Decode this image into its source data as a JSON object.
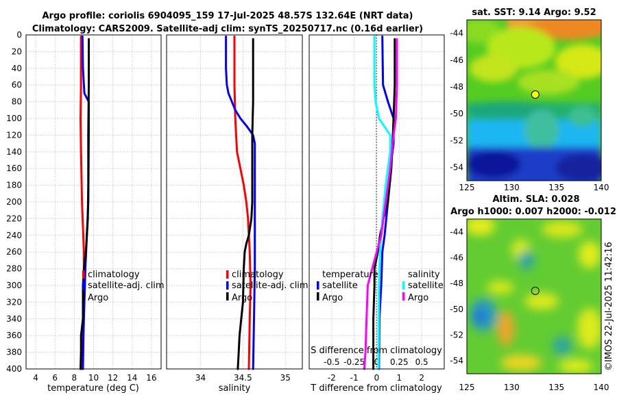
{
  "header": {
    "line1": "Argo profile: coriolis 6904095_159 17-Jul-2025 48.57S 132.64E (NRT data)",
    "line2": "Climatology: CARS2009. Satellite-adj clim: synTS_20250717.nc (0.16d earlier)"
  },
  "stamp": "©IMOS 22-Jul-2025 11:42:16",
  "colors": {
    "climatology": "#ff0000",
    "satellite": "#0000ff",
    "argo": "#000000",
    "sat_salinity": "#00ffff",
    "argo_salinity": "#ff00ff"
  },
  "chart_data": [
    {
      "type": "line",
      "title": "",
      "xlabel": "temperature (deg C)",
      "ylabel": "",
      "xlim": [
        3,
        17
      ],
      "ylim": [
        0,
        400
      ],
      "y_reversed": true,
      "xticks": [
        4,
        6,
        8,
        10,
        12,
        14,
        16
      ],
      "yticks": [
        0,
        20,
        40,
        60,
        80,
        100,
        120,
        140,
        160,
        180,
        200,
        220,
        240,
        260,
        280,
        300,
        320,
        340,
        360,
        380,
        400
      ],
      "legend": [
        "climatology",
        "satellite-adj. clim",
        "Argo"
      ],
      "series": [
        {
          "name": "climatology",
          "color": "#ff0000",
          "points": [
            [
              8.7,
              2
            ],
            [
              8.7,
              60
            ],
            [
              8.65,
              100
            ],
            [
              8.7,
              140
            ],
            [
              8.8,
              200
            ],
            [
              9.0,
              260
            ],
            [
              9.0,
              300
            ],
            [
              8.95,
              340
            ],
            [
              8.85,
              380
            ],
            [
              8.8,
              400
            ]
          ]
        },
        {
          "name": "satellite-adj. clim",
          "color": "#0000ff",
          "points": [
            [
              8.85,
              2
            ],
            [
              8.9,
              40
            ],
            [
              9.0,
              60
            ],
            [
              9.05,
              70
            ],
            [
              9.5,
              80
            ],
            [
              9.5,
              120
            ],
            [
              9.45,
              200
            ],
            [
              9.3,
              240
            ],
            [
              9.15,
              280
            ],
            [
              9.05,
              320
            ],
            [
              8.95,
              360
            ],
            [
              8.9,
              400
            ]
          ]
        },
        {
          "name": "Argo",
          "color": "#000000",
          "points": [
            [
              9.5,
              5
            ],
            [
              9.5,
              60
            ],
            [
              9.45,
              120
            ],
            [
              9.45,
              180
            ],
            [
              9.4,
              220
            ],
            [
              9.3,
              240
            ],
            [
              9.2,
              260
            ],
            [
              9.0,
              280
            ],
            [
              8.9,
              300
            ],
            [
              8.9,
              340
            ],
            [
              8.7,
              360
            ],
            [
              8.7,
              380
            ],
            [
              8.65,
              400
            ]
          ]
        }
      ]
    },
    {
      "type": "line",
      "title": "",
      "xlabel": "salinity",
      "ylabel": "",
      "xlim": [
        33.6,
        35.2
      ],
      "ylim": [
        0,
        400
      ],
      "y_reversed": true,
      "xticks": [
        34,
        34.5,
        35
      ],
      "xticklabels": [
        "34",
        "34.5",
        "35"
      ],
      "legend": [
        "climatology",
        "satellite-adj. clim",
        "Argo"
      ],
      "series": [
        {
          "name": "climatology",
          "color": "#ff0000",
          "points": [
            [
              34.4,
              2
            ],
            [
              34.4,
              60
            ],
            [
              34.41,
              100
            ],
            [
              34.43,
              140
            ],
            [
              34.47,
              160
            ],
            [
              34.51,
              180
            ],
            [
              34.54,
              200
            ],
            [
              34.56,
              220
            ],
            [
              34.58,
              260
            ],
            [
              34.59,
              300
            ],
            [
              34.58,
              340
            ],
            [
              34.57,
              400
            ]
          ]
        },
        {
          "name": "satellite-adj. clim",
          "color": "#0000ff",
          "points": [
            [
              34.3,
              2
            ],
            [
              34.3,
              40
            ],
            [
              34.31,
              60
            ],
            [
              34.33,
              70
            ],
            [
              34.41,
              90
            ],
            [
              34.47,
              100
            ],
            [
              34.55,
              110
            ],
            [
              34.62,
              120
            ],
            [
              34.64,
              130
            ],
            [
              34.64,
              200
            ],
            [
              34.64,
              280
            ],
            [
              34.63,
              340
            ],
            [
              34.62,
              400
            ]
          ]
        },
        {
          "name": "Argo",
          "color": "#000000",
          "points": [
            [
              34.62,
              5
            ],
            [
              34.62,
              80
            ],
            [
              34.61,
              120
            ],
            [
              34.61,
              160
            ],
            [
              34.61,
              200
            ],
            [
              34.6,
              220
            ],
            [
              34.57,
              240
            ],
            [
              34.54,
              250
            ],
            [
              34.52,
              260
            ],
            [
              34.51,
              280
            ],
            [
              34.5,
              320
            ],
            [
              34.48,
              340
            ],
            [
              34.46,
              360
            ],
            [
              34.45,
              380
            ],
            [
              34.44,
              400
            ]
          ]
        }
      ]
    },
    {
      "type": "line",
      "title": "",
      "xlabel": "T difference from climatology",
      "top_label": "S difference from climatology",
      "ylabel": "",
      "xlim": [
        -3,
        3
      ],
      "ylim": [
        0,
        400
      ],
      "y_reversed": true,
      "xticks": [
        -2,
        -1,
        0,
        1,
        2
      ],
      "xticklabels": [
        "-2",
        "-1",
        "0",
        "1",
        "2"
      ],
      "top_ticklabels": [
        "-0.5",
        "-0.25",
        "0",
        "0.25",
        "0.5"
      ],
      "legend_left_header": "temperature",
      "legend_right_header": "salinity",
      "legend_left": [
        "satellite",
        "Argo"
      ],
      "legend_right": [
        "satellite",
        "Argo"
      ],
      "series": [
        {
          "name": "temperature satellite",
          "color": "#0000ff",
          "points": [
            [
              0.25,
              2
            ],
            [
              0.28,
              60
            ],
            [
              0.5,
              80
            ],
            [
              0.75,
              100
            ],
            [
              0.75,
              130
            ],
            [
              0.6,
              160
            ],
            [
              0.5,
              200
            ],
            [
              0.35,
              240
            ],
            [
              0.25,
              260
            ],
            [
              0.2,
              300
            ],
            [
              0.12,
              340
            ],
            [
              0.1,
              400
            ]
          ]
        },
        {
          "name": "temperature Argo",
          "color": "#000000",
          "points": [
            [
              0.8,
              5
            ],
            [
              0.8,
              60
            ],
            [
              0.75,
              100
            ],
            [
              0.7,
              130
            ],
            [
              0.65,
              160
            ],
            [
              0.5,
              200
            ],
            [
              0.3,
              220
            ],
            [
              0.15,
              240
            ],
            [
              0.05,
              260
            ],
            [
              -0.1,
              280
            ],
            [
              -0.1,
              300
            ],
            [
              -0.15,
              340
            ],
            [
              -0.15,
              400
            ]
          ]
        },
        {
          "name": "salinity satellite",
          "color": "#00ffff",
          "points": [
            [
              -0.1,
              2
            ],
            [
              -0.1,
              60
            ],
            [
              -0.05,
              80
            ],
            [
              0.1,
              100
            ],
            [
              0.35,
              110
            ],
            [
              0.6,
              120
            ],
            [
              0.6,
              140
            ],
            [
              0.4,
              180
            ],
            [
              0.25,
              220
            ],
            [
              0.15,
              260
            ],
            [
              0.1,
              300
            ],
            [
              0.08,
              400
            ]
          ]
        },
        {
          "name": "salinity Argo",
          "color": "#ff00ff",
          "points": [
            [
              0.9,
              5
            ],
            [
              0.9,
              60
            ],
            [
              0.85,
              100
            ],
            [
              0.75,
              120
            ],
            [
              0.6,
              160
            ],
            [
              0.4,
              200
            ],
            [
              0.2,
              240
            ],
            [
              0.0,
              260
            ],
            [
              -0.2,
              280
            ],
            [
              -0.4,
              300
            ],
            [
              -0.45,
              340
            ],
            [
              -0.5,
              380
            ],
            [
              -0.55,
              400
            ]
          ]
        }
      ]
    },
    {
      "type": "heatmap",
      "title": "sat. SST: 9.14 Argo: 9.52",
      "xlabel": "",
      "ylabel": "",
      "xlim": [
        125,
        140
      ],
      "ylim": [
        -55,
        -43
      ],
      "xticks": [
        125,
        130,
        135,
        140
      ],
      "yticks": [
        -44,
        -46,
        -48,
        -50,
        -52,
        -54
      ],
      "marker": {
        "lon": 132.64,
        "lat": -48.57,
        "fill": "#ffff00"
      }
    },
    {
      "type": "heatmap",
      "title": "Altim. SLA: 0.028",
      "subtitle": "Argo h1000: 0.007 h2000: -0.012",
      "xlabel": "",
      "ylabel": "",
      "xlim": [
        125,
        140
      ],
      "ylim": [
        -55,
        -43
      ],
      "xticks": [
        125,
        130,
        135,
        140
      ],
      "yticks": [
        -44,
        -46,
        -48,
        -50,
        -52,
        -54
      ],
      "marker": {
        "lon": 132.64,
        "lat": -48.57,
        "fill": "none"
      }
    }
  ]
}
